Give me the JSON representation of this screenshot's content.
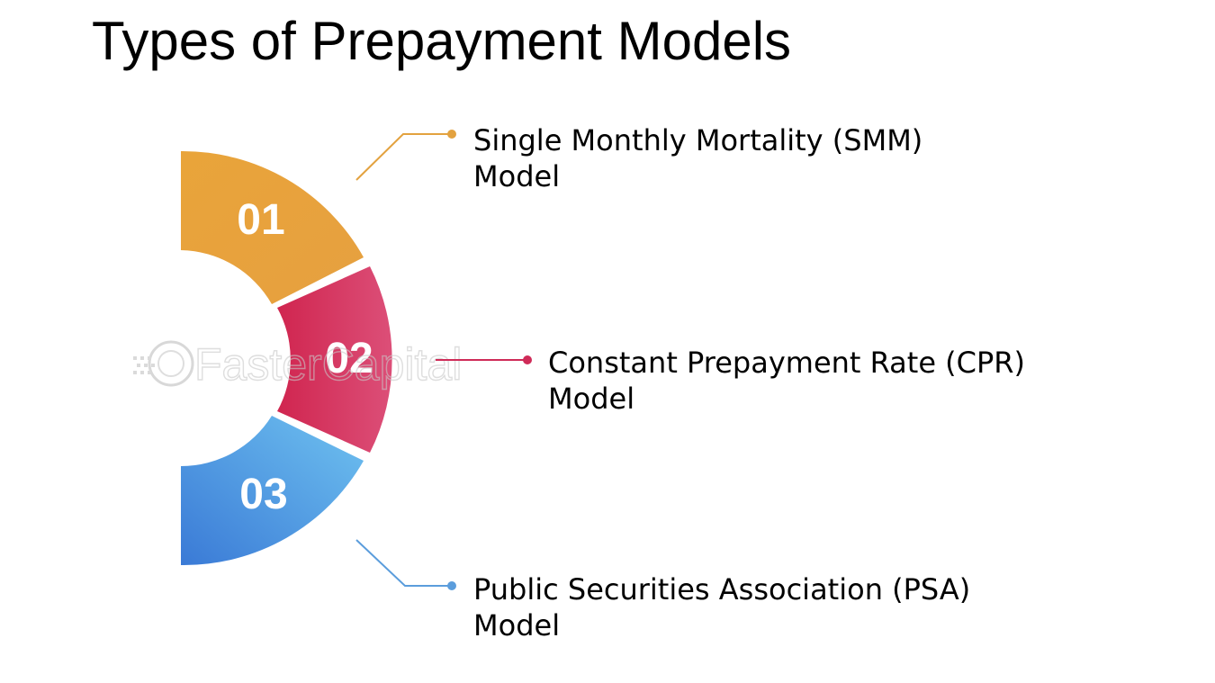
{
  "title": "Types of Prepayment Models",
  "colors": {
    "segment_1": "#e9a43a",
    "segment_2": "#cf2b58",
    "segment_3": "#5aa6e6",
    "connector_1": "#e3a23f",
    "connector_2": "#cf2b58",
    "connector_3": "#5b9ddc"
  },
  "items": [
    {
      "number": "01",
      "label_line1": "Single Monthly Mortality (SMM)",
      "label_line2": "Model"
    },
    {
      "number": "02",
      "label_line1": "Constant Prepayment Rate (CPR)",
      "label_line2": "Model"
    },
    {
      "number": "03",
      "label_line1": "Public Securities Association (PSA)",
      "label_line2": "Model"
    }
  ],
  "watermark": {
    "text": "FasterCapital"
  }
}
